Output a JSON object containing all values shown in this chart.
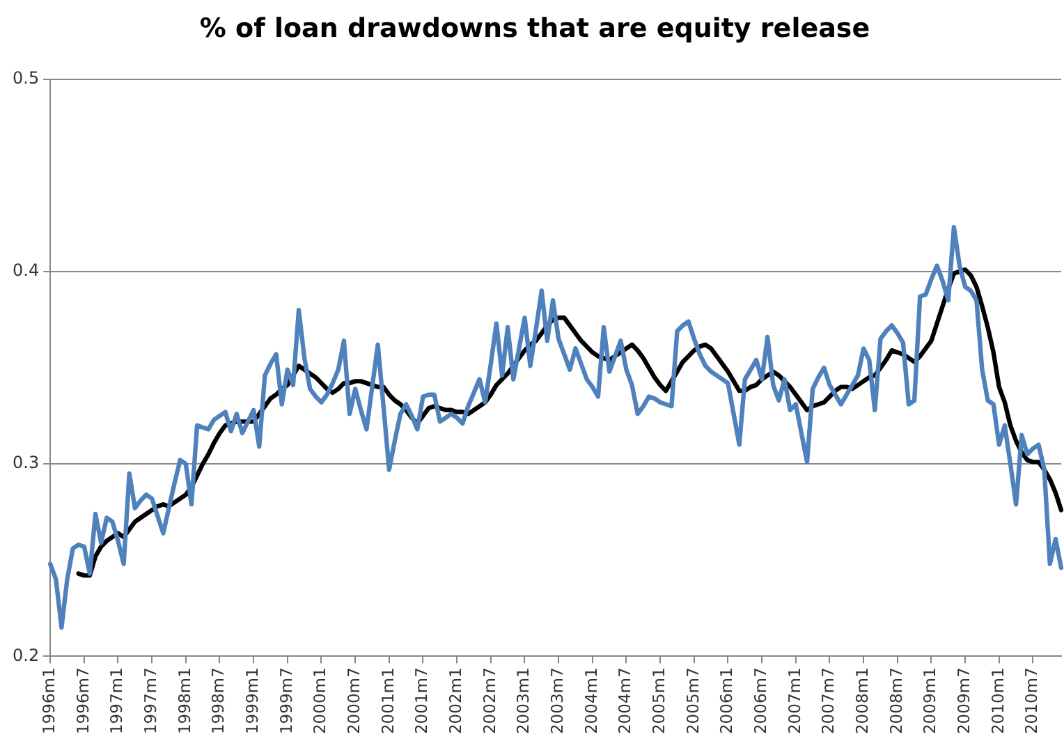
{
  "chart_data": {
    "type": "line",
    "title": "% of loan drawdowns that are equity release",
    "categories": [
      "1996m1",
      null,
      null,
      null,
      null,
      null,
      "1996m7",
      null,
      null,
      null,
      null,
      null,
      "1997m1",
      null,
      null,
      null,
      null,
      null,
      "1997m7",
      null,
      null,
      null,
      null,
      null,
      "1998m1",
      null,
      null,
      null,
      null,
      null,
      "1998m7",
      null,
      null,
      null,
      null,
      null,
      "1999m1",
      null,
      null,
      null,
      null,
      null,
      "1999m7",
      null,
      null,
      null,
      null,
      null,
      "2000m1",
      null,
      null,
      null,
      null,
      null,
      "2000m7",
      null,
      null,
      null,
      null,
      null,
      "2001m1",
      null,
      null,
      null,
      null,
      null,
      "2001m7",
      null,
      null,
      null,
      null,
      null,
      "2002m1",
      null,
      null,
      null,
      null,
      null,
      "2002m7",
      null,
      null,
      null,
      null,
      null,
      "2003m1",
      null,
      null,
      null,
      null,
      null,
      "2003m7",
      null,
      null,
      null,
      null,
      null,
      "2004m1",
      null,
      null,
      null,
      null,
      null,
      "2004m7",
      null,
      null,
      null,
      null,
      null,
      "2005m1",
      null,
      null,
      null,
      null,
      null,
      "2005m7",
      null,
      null,
      null,
      null,
      null,
      "2006m1",
      null,
      null,
      null,
      null,
      null,
      "2006m7",
      null,
      null,
      null,
      null,
      null,
      "2007m1",
      null,
      null,
      null,
      null,
      null,
      "2007m7",
      null,
      null,
      null,
      null,
      null,
      "2008m1",
      null,
      null,
      null,
      null,
      null,
      "2008m7",
      null,
      null,
      null,
      null,
      null,
      "2009m1",
      null,
      null,
      null,
      null,
      null,
      "2009m7",
      null,
      null,
      null,
      null,
      null,
      "2010m1",
      null,
      null,
      null,
      null,
      null,
      "2010m7",
      null,
      null,
      null,
      null,
      null
    ],
    "series": [
      {
        "color": "#4f81bd",
        "values": [
          0.248,
          0.24,
          0.215,
          0.24,
          0.256,
          0.258,
          0.257,
          0.243,
          0.274,
          0.259,
          0.272,
          0.27,
          0.26,
          0.248,
          0.295,
          0.277,
          0.281,
          0.284,
          0.282,
          0.273,
          0.264,
          0.277,
          0.29,
          0.302,
          0.3,
          0.279,
          0.32,
          0.319,
          0.318,
          0.323,
          0.325,
          0.327,
          0.317,
          0.326,
          0.316,
          0.322,
          0.328,
          0.309,
          0.346,
          0.352,
          0.357,
          0.331,
          0.349,
          0.341,
          0.38,
          0.355,
          0.339,
          0.335,
          0.332,
          0.336,
          0.342,
          0.349,
          0.364,
          0.326,
          0.339,
          0.328,
          0.318,
          0.34,
          0.362,
          0.33,
          0.297,
          0.312,
          0.326,
          0.331,
          0.325,
          0.318,
          0.335,
          0.336,
          0.336,
          0.322,
          0.324,
          0.326,
          0.324,
          0.321,
          0.33,
          0.337,
          0.344,
          0.332,
          0.352,
          0.373,
          0.346,
          0.371,
          0.344,
          0.36,
          0.376,
          0.351,
          0.37,
          0.39,
          0.364,
          0.385,
          0.365,
          0.357,
          0.349,
          0.36,
          0.352,
          0.344,
          0.34,
          0.335,
          0.371,
          0.348,
          0.356,
          0.364,
          0.349,
          0.341,
          0.326,
          0.33,
          0.335,
          0.334,
          0.332,
          0.331,
          0.33,
          0.369,
          0.372,
          0.374,
          0.365,
          0.357,
          0.351,
          0.348,
          0.346,
          0.344,
          0.342,
          0.326,
          0.31,
          0.344,
          0.349,
          0.354,
          0.344,
          0.366,
          0.341,
          0.333,
          0.344,
          0.328,
          0.331,
          0.316,
          0.301,
          0.339,
          0.345,
          0.35,
          0.341,
          0.336,
          0.331,
          0.336,
          0.341,
          0.346,
          0.36,
          0.354,
          0.328,
          0.365,
          0.369,
          0.372,
          0.368,
          0.363,
          0.331,
          0.333,
          0.387,
          0.388,
          0.396,
          0.403,
          0.395,
          0.385,
          0.423,
          0.403,
          0.392,
          0.39,
          0.385,
          0.349,
          0.333,
          0.331,
          0.31,
          0.32,
          0.3,
          0.279,
          0.315,
          0.305,
          0.308,
          0.31,
          0.297,
          0.248,
          0.261,
          0.246
        ]
      },
      {
        "color": "#000000",
        "values": [
          null,
          null,
          null,
          null,
          null,
          0.243,
          0.242,
          0.242,
          0.252,
          0.257,
          0.26,
          0.262,
          0.264,
          0.262,
          0.266,
          0.27,
          0.272,
          0.274,
          0.276,
          0.278,
          0.279,
          0.278,
          0.28,
          0.282,
          0.284,
          0.288,
          0.294,
          0.3,
          0.305,
          0.311,
          0.316,
          0.32,
          0.321,
          0.322,
          0.322,
          0.322,
          0.322,
          0.326,
          0.33,
          0.334,
          0.336,
          0.339,
          0.341,
          0.346,
          0.351,
          0.349,
          0.347,
          0.345,
          0.342,
          0.339,
          0.337,
          0.339,
          0.342,
          0.342,
          0.343,
          0.343,
          0.342,
          0.341,
          0.34,
          0.34,
          0.336,
          0.333,
          0.331,
          0.328,
          0.324,
          0.321,
          0.325,
          0.329,
          0.33,
          0.329,
          0.328,
          0.328,
          0.327,
          0.327,
          0.326,
          0.328,
          0.33,
          0.332,
          0.336,
          0.341,
          0.344,
          0.347,
          0.351,
          0.355,
          0.359,
          0.362,
          0.364,
          0.368,
          0.372,
          0.375,
          0.376,
          0.376,
          0.372,
          0.368,
          0.364,
          0.361,
          0.358,
          0.356,
          0.355,
          0.354,
          0.356,
          0.358,
          0.36,
          0.362,
          0.359,
          0.355,
          0.35,
          0.345,
          0.341,
          0.338,
          0.343,
          0.348,
          0.353,
          0.356,
          0.359,
          0.361,
          0.362,
          0.36,
          0.356,
          0.352,
          0.348,
          0.343,
          0.338,
          0.338,
          0.34,
          0.341,
          0.344,
          0.346,
          0.348,
          0.346,
          0.343,
          0.34,
          0.336,
          0.332,
          0.328,
          0.33,
          0.331,
          0.332,
          0.335,
          0.338,
          0.34,
          0.34,
          0.339,
          0.341,
          0.343,
          0.345,
          0.346,
          0.35,
          0.354,
          0.359,
          0.358,
          0.357,
          0.355,
          0.353,
          0.356,
          0.36,
          0.364,
          0.373,
          0.382,
          0.391,
          0.399,
          0.4,
          0.401,
          0.398,
          0.392,
          0.382,
          0.371,
          0.358,
          0.34,
          0.332,
          0.32,
          0.312,
          0.306,
          0.302,
          0.301,
          0.301,
          0.297,
          0.292,
          0.285,
          0.276
        ]
      }
    ],
    "ylim": [
      0.2,
      0.5
    ],
    "yticks": [
      0.2,
      0.3,
      0.4,
      0.5
    ],
    "grid": "y",
    "legend": false,
    "marker": "none",
    "line_style": "solid"
  }
}
